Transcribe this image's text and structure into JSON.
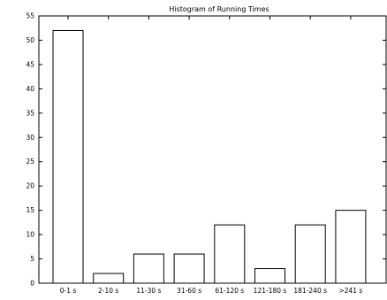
{
  "chart_data": {
    "type": "bar",
    "title": "Histogram of Running Times",
    "xlabel": "",
    "ylabel": "",
    "categories": [
      "0-1 s",
      "2-10 s",
      "11-30 s",
      "31-60 s",
      "61-120 s",
      "121-180 s",
      "181-240 s",
      ">241 s"
    ],
    "values": [
      52,
      2,
      6,
      6,
      12,
      3,
      12,
      15
    ],
    "ylim": [
      0,
      55
    ],
    "yticks": [
      0,
      5,
      10,
      15,
      20,
      25,
      30,
      35,
      40,
      45,
      50,
      55
    ],
    "ytick_labels": [
      "0",
      "5",
      "10",
      "15",
      "20",
      "25",
      "30",
      "35",
      "40",
      "45",
      "50",
      "55"
    ],
    "grid": false,
    "legend": "none",
    "colors": {
      "bar_fill": "#ffffff",
      "bar_stroke": "#000000",
      "axis": "#000000",
      "background": "#ffffff"
    }
  }
}
